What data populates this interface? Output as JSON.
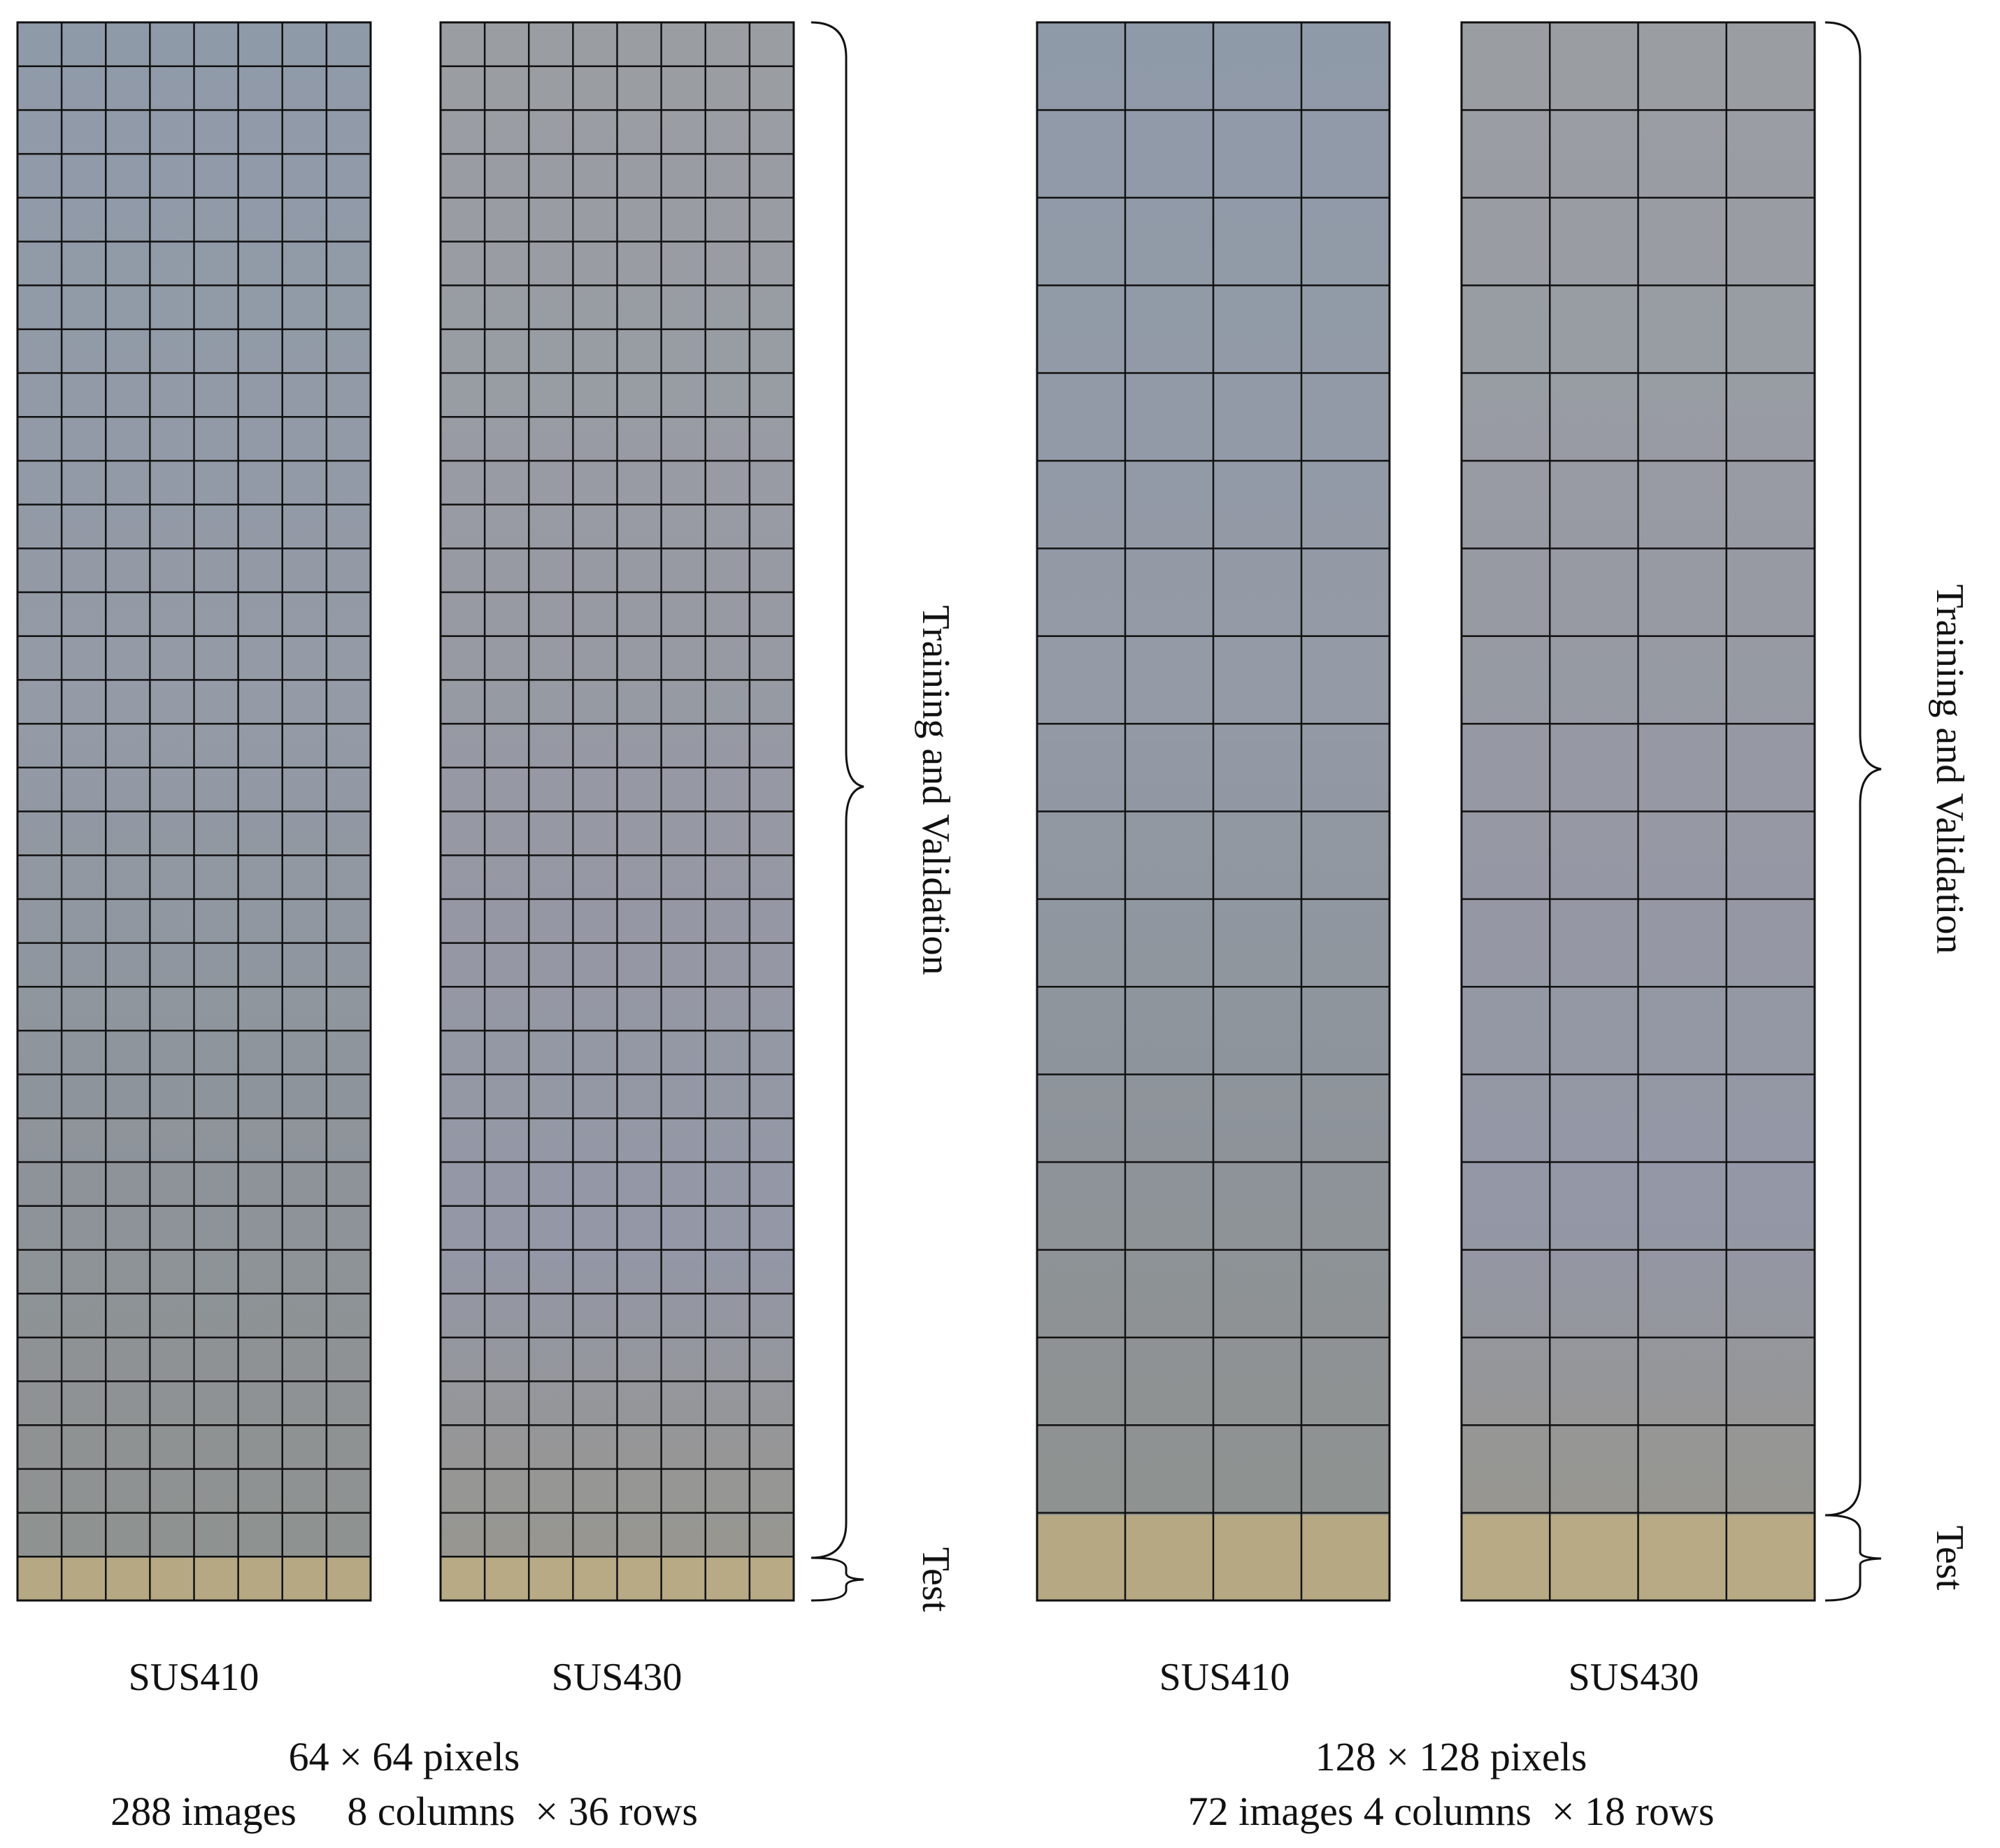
{
  "panels": [
    {
      "columns": 8,
      "rows": 36,
      "test_rows": 1,
      "strips": [
        {
          "label": "SUS410",
          "tint": "#8f98a3",
          "test_color": "#b5a883"
        },
        {
          "label": "SUS430",
          "tint": "#979a9e",
          "test_color": "#b7aa84"
        }
      ],
      "brace_labels": {
        "train": "Training and Validation",
        "test": "Test"
      },
      "caption_line1": "64 × 64 pixels",
      "caption_line2": "288 images     8 columns  × 36 rows"
    },
    {
      "columns": 4,
      "rows": 18,
      "test_rows": 1,
      "strips": [
        {
          "label": "SUS410",
          "tint": "#8f98a3",
          "test_color": "#b5a883"
        },
        {
          "label": "SUS430",
          "tint": "#979a9e",
          "test_color": "#b7aa84"
        }
      ],
      "brace_labels": {
        "train": "Training and Validation",
        "test": "Test"
      },
      "caption_line1": "128 × 128 pixels",
      "caption_line2": "72 images 4 columns  × 18 rows"
    }
  ],
  "colors": {
    "grid_line": "#111111",
    "brace": "#111111"
  }
}
